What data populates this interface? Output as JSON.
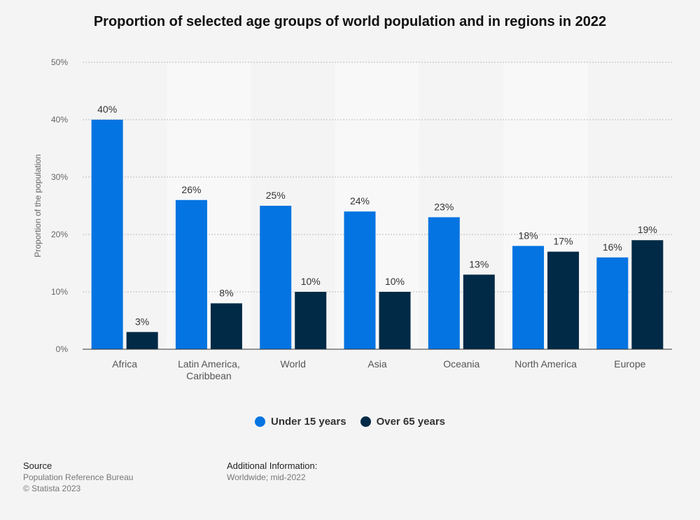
{
  "colors": {
    "under15": "#0474e2",
    "over65": "#012a46",
    "band": "#f8f8f8",
    "grid": "#bbbbbb"
  },
  "chart_data": {
    "type": "bar",
    "title": "Proportion of selected age groups of world population and in regions in 2022",
    "ylabel": "Proportion of the population",
    "ylim": [
      0,
      50
    ],
    "yticks": [
      "0%",
      "10%",
      "20%",
      "30%",
      "40%",
      "50%"
    ],
    "categories": [
      [
        "Africa"
      ],
      [
        "Latin America,",
        "Caribbean"
      ],
      [
        "World"
      ],
      [
        "Asia"
      ],
      [
        "Oceania"
      ],
      [
        "North America"
      ],
      [
        "Europe"
      ]
    ],
    "series": [
      {
        "name": "Under 15 years",
        "values": [
          40,
          26,
          25,
          24,
          23,
          18,
          16
        ],
        "labels": [
          "40%",
          "26%",
          "25%",
          "24%",
          "23%",
          "18%",
          "16%"
        ]
      },
      {
        "name": "Over 65 years",
        "values": [
          3,
          8,
          10,
          10,
          13,
          17,
          19
        ],
        "labels": [
          "3%",
          "8%",
          "10%",
          "10%",
          "13%",
          "17%",
          "19%"
        ]
      }
    ],
    "legend_position": "bottom",
    "grid": true
  },
  "footer": {
    "source_heading": "Source",
    "source_line1": "Population Reference Bureau",
    "source_line2": "© Statista 2023",
    "info_heading": "Additional Information:",
    "info_line1": "Worldwide; mid-2022"
  }
}
